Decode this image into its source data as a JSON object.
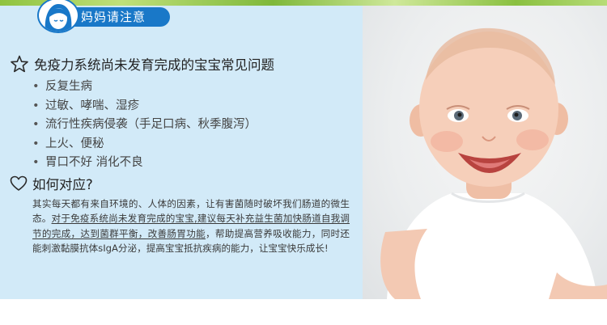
{
  "header": {
    "title": "妈妈请注意",
    "avatar_icon": "mother-avatar-icon"
  },
  "problems": {
    "icon": "star-icon",
    "title": "免疫力系统尚未发育完成的宝宝常见问题",
    "bullet_symbol": "•",
    "items": [
      "反复生病",
      "过敏、哮喘、湿疹",
      "流行性疾病侵袭（手足口病、秋季腹泻）",
      "上火、便秘",
      "胃口不好 消化不良"
    ]
  },
  "howto": {
    "icon": "heart-icon",
    "title": "如何对应?",
    "text_1": "其实每天都有来自环境的、人体的因素，让有害菌随时破坏我们肠道的微生态。",
    "text_2": "对于免疫系统尚未发育完成的宝宝,建议每天补充益生菌加快肠道自我调节的完成，达到菌群平衡，改善肠胃功能",
    "text_3": "，帮助提高营养吸收能力，同时还能刺激黏膜抗体sIgA分泌，提高宝宝抵抗疾病的能力，让宝宝快乐成长!"
  },
  "photo": {
    "subject": "smiling-baby-photo"
  },
  "colors": {
    "panel_bg": "#d2eaf8",
    "header_blue": "#1978c8",
    "top_strip_green": "#8fc33f"
  }
}
